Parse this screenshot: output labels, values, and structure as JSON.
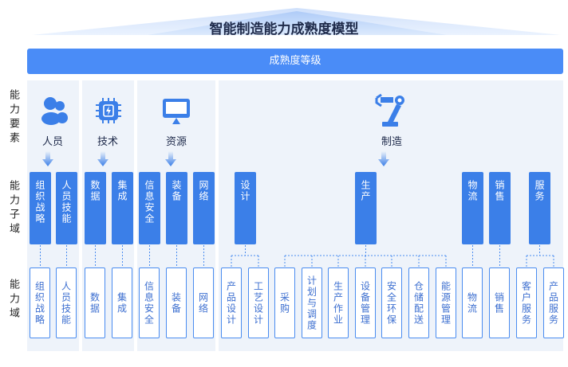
{
  "title": "智能制造能力成熟度模型",
  "band_label": "成熟度等级",
  "row_labels": [
    "能力要素",
    "能力子域",
    "能力域"
  ],
  "colors": {
    "accent": "#3b7fe8",
    "band": "#4a8cf7",
    "panel": "#eef3fa",
    "domain_text": "#3d6fd0"
  },
  "elements": [
    {
      "name": "人员",
      "icon": "people-icon",
      "subdomains": [
        {
          "name": "组织战略",
          "domains": [
            "组织战略"
          ]
        },
        {
          "name": "人员技能",
          "domains": [
            "人员技能"
          ]
        }
      ]
    },
    {
      "name": "技术",
      "icon": "chip-icon",
      "subdomains": [
        {
          "name": "数据",
          "domains": [
            "数据"
          ]
        },
        {
          "name": "集成",
          "domains": [
            "集成"
          ]
        }
      ]
    },
    {
      "name": "资源",
      "icon": "monitor-icon",
      "subdomains": [
        {
          "name": "信息安全",
          "domains": [
            "信息安全"
          ]
        },
        {
          "name": "装备",
          "domains": [
            "装备"
          ]
        },
        {
          "name": "网络",
          "domains": [
            "网络"
          ]
        }
      ]
    },
    {
      "name": "制造",
      "icon": "robot-arm-icon",
      "subdomains": [
        {
          "name": "设计",
          "domains": [
            "产品设计",
            "工艺设计"
          ]
        },
        {
          "name": "生产",
          "domains": [
            "采购",
            "计划与调度",
            "生产作业",
            "设备管理",
            "安全环保",
            "仓储配送",
            "能源管理"
          ]
        },
        {
          "name": "物流",
          "domains": [
            "物流"
          ]
        },
        {
          "name": "销售",
          "domains": [
            "销售"
          ]
        },
        {
          "name": "服务",
          "domains": [
            "客户服务",
            "产品服务"
          ]
        }
      ]
    }
  ]
}
